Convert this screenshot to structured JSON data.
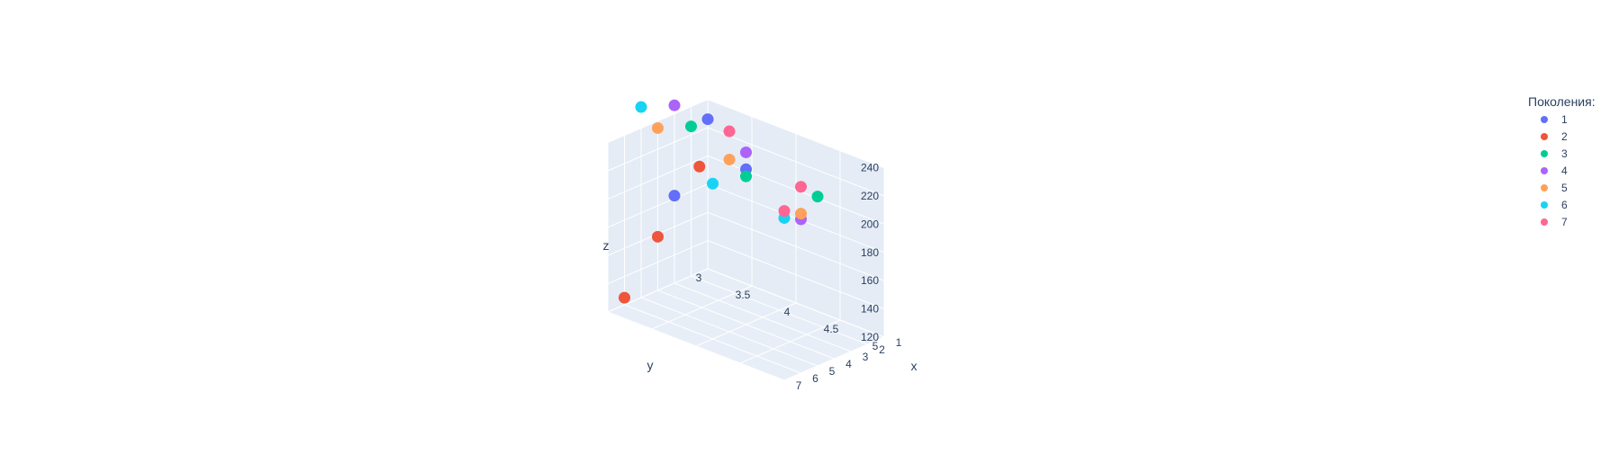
{
  "chart_data": {
    "type": "scatter3d",
    "title": "",
    "xlabel": "x",
    "ylabel": "y",
    "zlabel": "z",
    "x_ticks": [
      "1",
      "2",
      "3",
      "4",
      "5",
      "6",
      "7"
    ],
    "y_ticks": [
      "3",
      "3.5",
      "4",
      "4.5",
      "5"
    ],
    "z_ticks": [
      "120",
      "140",
      "160",
      "180",
      "200",
      "220",
      "240"
    ],
    "legend_title": "Поколения:",
    "legend_position": "right",
    "series": [
      {
        "name": "1",
        "color": "#636efa",
        "points": [
          [
            1,
            3,
            226
          ],
          [
            3,
            3,
            182
          ],
          [
            4,
            4,
            230
          ]
        ]
      },
      {
        "name": "2",
        "color": "#ef553b",
        "points": [
          [
            1.5,
            3,
            195
          ],
          [
            4,
            3,
            158
          ],
          [
            6,
            3,
            125
          ]
        ]
      },
      {
        "name": "3",
        "color": "#00cc96",
        "points": [
          [
            2,
            3,
            226
          ],
          [
            4,
            4,
            225
          ],
          [
            5,
            5,
            240
          ]
        ]
      },
      {
        "name": "4",
        "color": "#ab63fa",
        "points": [
          [
            3,
            3,
            246
          ],
          [
            4,
            4,
            242
          ],
          [
            6,
            5,
            229
          ]
        ]
      },
      {
        "name": "5",
        "color": "#ffa15a",
        "points": [
          [
            4,
            3,
            235
          ],
          [
            5,
            4,
            242
          ],
          [
            6,
            5,
            233
          ]
        ]
      },
      {
        "name": "6",
        "color": "#19d3f3",
        "points": [
          [
            5,
            3,
            255
          ],
          [
            6,
            4,
            230
          ],
          [
            7,
            5,
            235
          ]
        ]
      },
      {
        "name": "7",
        "color": "#ff6692",
        "points": [
          [
            5,
            4,
            262
          ],
          [
            6,
            5,
            252
          ],
          [
            7,
            5,
            240
          ]
        ]
      }
    ]
  }
}
